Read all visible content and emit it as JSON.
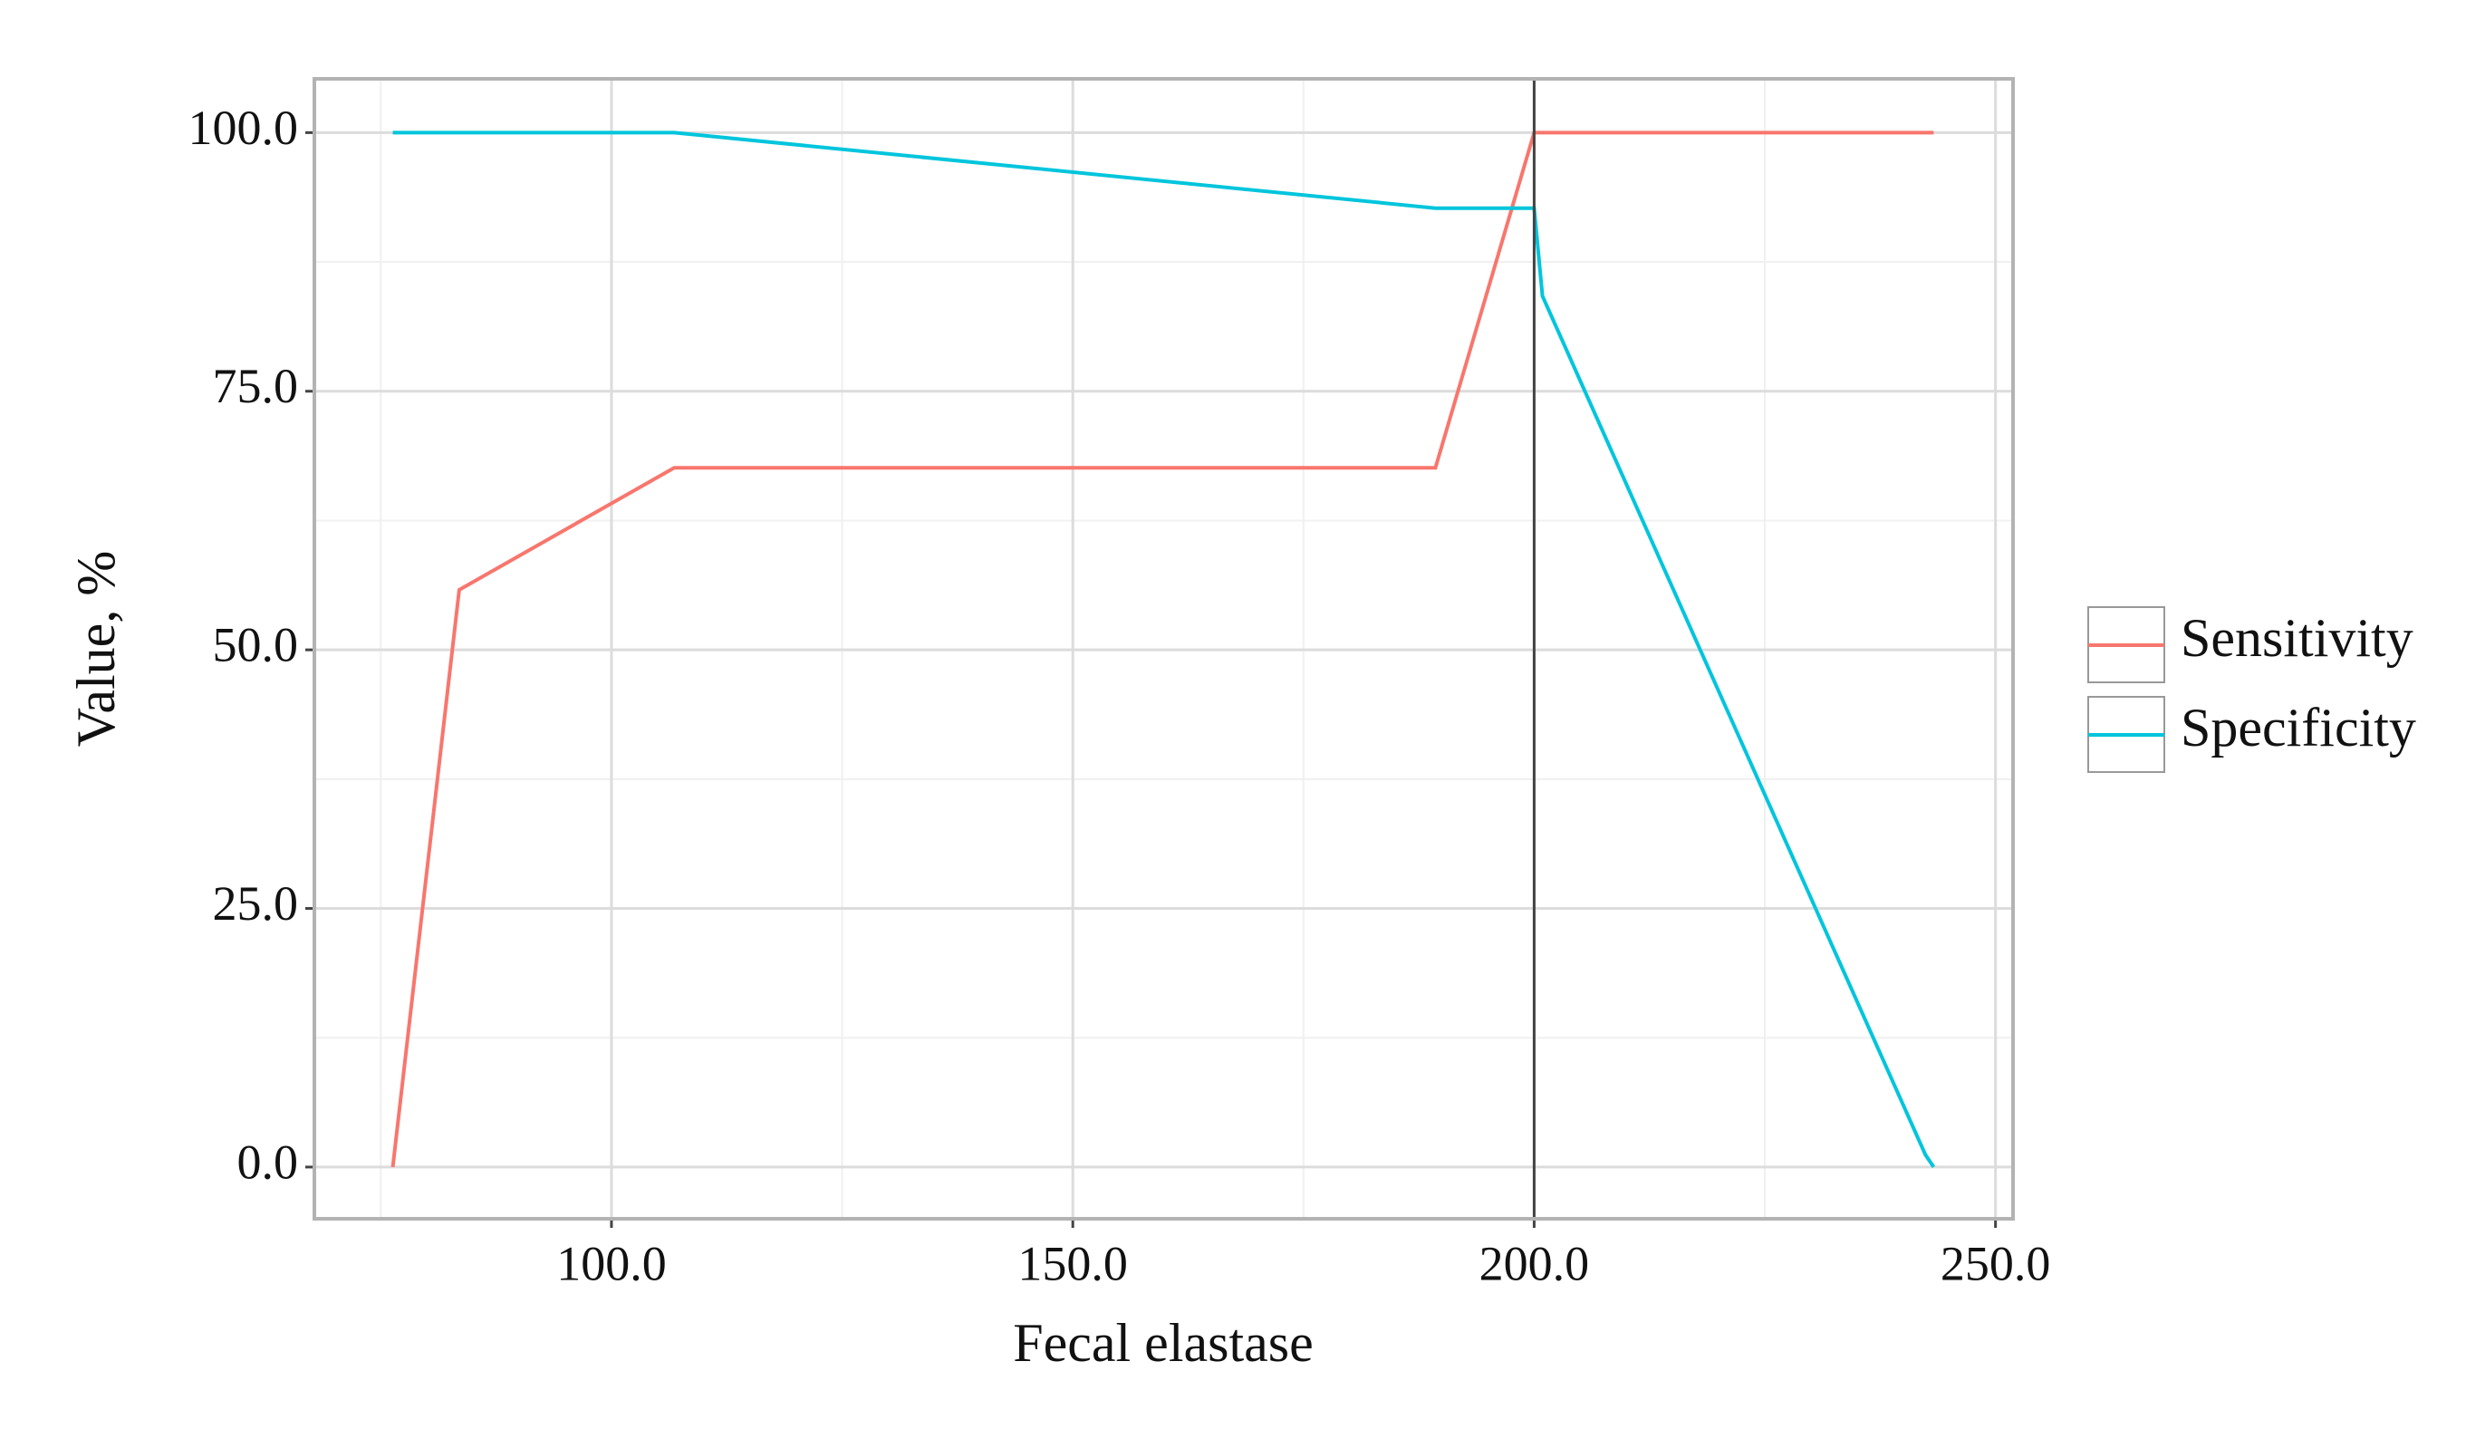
{
  "chart_data": {
    "type": "line",
    "x_label": "Fecal elastase",
    "y_label": "Value, %",
    "series": [
      {
        "name": "Sensitivity",
        "color": "#f8766d",
        "x": [
          76.3,
          83.5,
          106.8,
          189.3,
          200,
          243.3
        ],
        "values": [
          0,
          55.8,
          67.6,
          67.6,
          100,
          100
        ]
      },
      {
        "name": "Specificity",
        "color": "#00c5dc",
        "x": [
          76.3,
          106.8,
          189.3,
          200,
          200.9,
          242.4,
          243.3
        ],
        "values": [
          100,
          100,
          92.7,
          92.7,
          84.2,
          1.2,
          0
        ]
      }
    ],
    "vline": 200,
    "xlim": [
      67.8,
      251.9
    ],
    "ylim": [
      -5.0,
      105.2
    ],
    "xticks": [
      {
        "value": 100,
        "label": "100.0"
      },
      {
        "value": 150,
        "label": "150.0"
      },
      {
        "value": 200,
        "label": "200.0"
      },
      {
        "value": 250,
        "label": "250.0"
      }
    ],
    "yticks": [
      {
        "value": 0,
        "label": "0.0"
      },
      {
        "value": 25,
        "label": "25.0"
      },
      {
        "value": 50,
        "label": "50.0"
      },
      {
        "value": 75,
        "label": "75.0"
      },
      {
        "value": 100,
        "label": "100.0"
      }
    ],
    "grid": true,
    "legend": "right"
  }
}
